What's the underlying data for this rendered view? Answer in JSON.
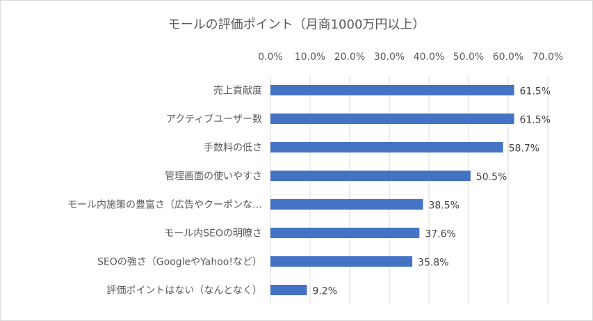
{
  "chart_data": {
    "type": "bar",
    "orientation": "horizontal",
    "title": "モールの評価ポイント（月商1000万円以上）",
    "categories": [
      "売上貢献度",
      "アクティブユーザー数",
      "手数料の低さ",
      "管理画面の使いやすさ",
      "モール内施策の豊富さ（広告やクーポンな…",
      "モール内SEOの明瞭さ",
      "SEOの強さ（GoogleやYahoo!など）",
      "評価ポイントはない（なんとなく）"
    ],
    "values": [
      61.5,
      61.5,
      58.7,
      50.5,
      38.5,
      37.6,
      35.8,
      9.2
    ],
    "data_labels": [
      "61.5%",
      "61.5%",
      "58.7%",
      "50.5%",
      "38.5%",
      "37.6%",
      "35.8%",
      "9.2%"
    ],
    "xlim": [
      0,
      70
    ],
    "xticks": [
      0,
      10,
      20,
      30,
      40,
      50,
      60,
      70
    ],
    "xtick_labels": [
      "0.0%",
      "10.0%",
      "20.0%",
      "30.0%",
      "40.0%",
      "50.0%",
      "60.0%",
      "70.0%"
    ],
    "x_axis_position": "top",
    "grid": true,
    "legend": "none",
    "bar_color": "#4472c4",
    "xlabel": "",
    "ylabel": ""
  }
}
